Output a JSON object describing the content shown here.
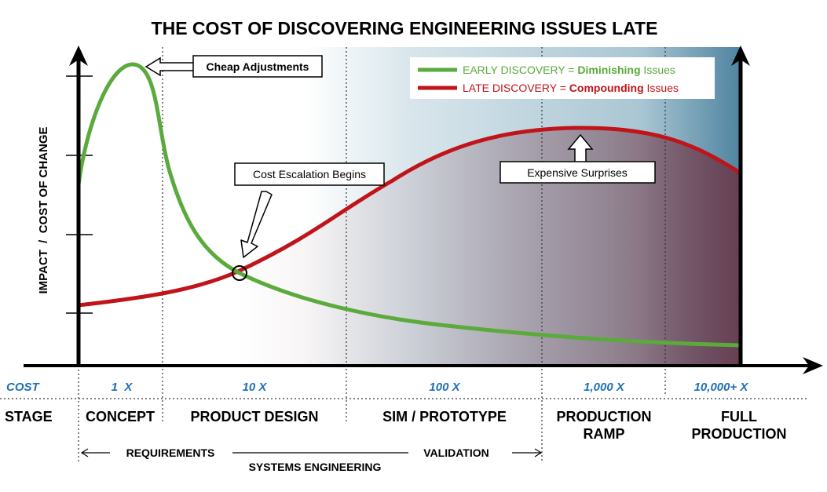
{
  "title": "THE COST OF DISCOVERING ENGINEERING ISSUES LATE",
  "y_axis_label": "IMPACT  /  COST OF CHANGE",
  "legend": {
    "early": {
      "prefix": "EARLY DISCOVERY = ",
      "emphasis": "Diminishing",
      "suffix": " Issues",
      "color": "#5aaa3c"
    },
    "late": {
      "prefix": "LATE DISCOVERY = ",
      "emphasis": "Compounding",
      "suffix": " Issues",
      "color": "#c0141a"
    }
  },
  "callouts": {
    "cheap": "Cheap Adjustments",
    "escalation": "Cost Escalation Begins",
    "surprises": "Expensive Surprises"
  },
  "rows": {
    "cost_label": "COST",
    "stage_label": "STAGE"
  },
  "phases": [
    {
      "cost": "1  X",
      "stage": [
        "CONCEPT"
      ]
    },
    {
      "cost": "10 X",
      "stage": [
        "PRODUCT DESIGN"
      ]
    },
    {
      "cost": "100 X",
      "stage": [
        "SIM / PROTOTYPE"
      ]
    },
    {
      "cost": "1,000 X",
      "stage": [
        "PRODUCTION",
        "RAMP"
      ]
    },
    {
      "cost": "10,000+ X",
      "stage": [
        "FULL",
        "PRODUCTION"
      ]
    }
  ],
  "spans": {
    "requirements": "REQUIREMENTS",
    "validation": "VALIDATION",
    "systems_engineering": "SYSTEMS ENGINEERING"
  },
  "colors": {
    "cost_text": "#1f6fb5",
    "gradient_mid": "#bcd4dd",
    "gradient_end": "#4f84a0",
    "overlay": "#6e2c3c"
  }
}
